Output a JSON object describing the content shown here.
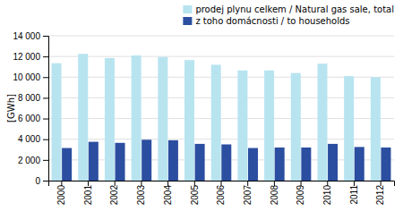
{
  "chart_data": {
    "type": "bar",
    "y_label": "[GWh]",
    "categories": [
      "2000",
      "2001",
      "2002",
      "2003",
      "2004",
      "2005",
      "2006",
      "2007",
      "2008",
      "2009",
      "2010",
      "2011",
      "2012"
    ],
    "series": [
      {
        "name": "prodej plynu celkem / Natural gas sale, total",
        "color": "#b8e4f0",
        "values": [
          11350,
          12250,
          11850,
          12100,
          11950,
          11650,
          11200,
          10650,
          10650,
          10400,
          11300,
          10100,
          10000
        ]
      },
      {
        "name": "z toho domácnosti / to households",
        "color": "#2b4ea0",
        "values": [
          3150,
          3750,
          3650,
          3950,
          3900,
          3550,
          3500,
          3150,
          3200,
          3200,
          3550,
          3250,
          3200
        ]
      }
    ],
    "ylim": [
      0,
      14000
    ],
    "yticks": [
      0,
      {
        "value": 2000,
        "label": "2 000"
      },
      {
        "value": 4000,
        "label": "4 000"
      },
      {
        "value": 6000,
        "label": "6 000"
      },
      {
        "value": 8000,
        "label": "8 000"
      },
      {
        "value": 10000,
        "label": "10 000"
      },
      {
        "value": 12000,
        "label": "12 000"
      },
      {
        "value": 14000,
        "label": "14 000"
      }
    ],
    "grid": true,
    "legend": "top-right"
  }
}
